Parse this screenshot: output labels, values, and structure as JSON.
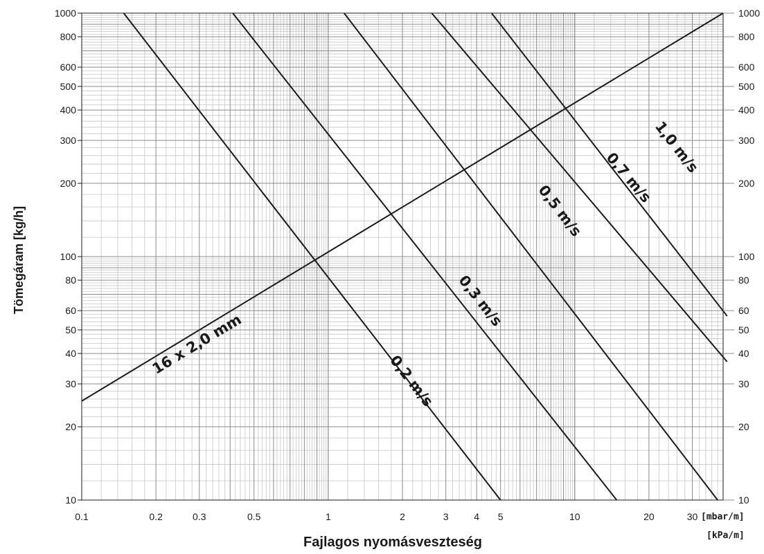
{
  "chart_data": {
    "type": "line",
    "x_scale": "log",
    "y_scale": "log",
    "xlim": [
      0.1,
      40
    ],
    "ylim": [
      10,
      1000
    ],
    "grid": true,
    "title": "",
    "xlabel": "Fajlagos nyomásveszteség",
    "ylabel": "Tömegáram [kg/h]",
    "x_unit_labels": [
      "[mbar/m]",
      "[kPa/m]"
    ],
    "x_ticks": [
      {
        "value": 0.1,
        "label": "0.1"
      },
      {
        "value": 0.2,
        "label": "0.2"
      },
      {
        "value": 0.3,
        "label": "0.3"
      },
      {
        "value": 0.5,
        "label": "0.5"
      },
      {
        "value": 1,
        "label": "1"
      },
      {
        "value": 2,
        "label": "2"
      },
      {
        "value": 3,
        "label": "3"
      },
      {
        "value": 4,
        "label": "4"
      },
      {
        "value": 5,
        "label": "5"
      },
      {
        "value": 10,
        "label": "10"
      },
      {
        "value": 20,
        "label": "20"
      },
      {
        "value": 30,
        "label": "30"
      }
    ],
    "y_ticks": [
      {
        "value": 10,
        "label": "10"
      },
      {
        "value": 20,
        "label": "20"
      },
      {
        "value": 30,
        "label": "30"
      },
      {
        "value": 40,
        "label": "40"
      },
      {
        "value": 50,
        "label": "50"
      },
      {
        "value": 60,
        "label": "60"
      },
      {
        "value": 80,
        "label": "80"
      },
      {
        "value": 100,
        "label": "100"
      },
      {
        "value": 200,
        "label": "200"
      },
      {
        "value": 300,
        "label": "300"
      },
      {
        "value": 400,
        "label": "400"
      },
      {
        "value": 500,
        "label": "500"
      },
      {
        "value": 600,
        "label": "600"
      },
      {
        "value": 800,
        "label": "800"
      },
      {
        "value": 1000,
        "label": "1000"
      }
    ],
    "series": [
      {
        "name": "16 x 2,0 mm",
        "points": [
          [
            0.1,
            25.5
          ],
          [
            40,
            1000
          ]
        ],
        "label_at": [
          0.3,
          42
        ]
      },
      {
        "name": "0,2 m/s",
        "points": [
          [
            0.148,
            1000
          ],
          [
            5.0,
            10
          ]
        ],
        "label_at": [
          2.1,
          30
        ]
      },
      {
        "name": "0,3 m/s",
        "points": [
          [
            0.41,
            1000
          ],
          [
            14.8,
            10
          ]
        ],
        "label_at": [
          4.0,
          64
        ]
      },
      {
        "name": "0,5 m/s",
        "points": [
          [
            1.16,
            1000
          ],
          [
            38,
            10
          ]
        ],
        "label_at": [
          8.4,
          150
        ]
      },
      {
        "name": "0,7 m/s",
        "points": [
          [
            2.63,
            1000
          ],
          [
            41.5,
            37
          ]
        ],
        "label_at": [
          16,
          205
        ]
      },
      {
        "name": "1,0 m/s",
        "points": [
          [
            4.6,
            1000
          ],
          [
            41.5,
            57
          ]
        ],
        "label_at": [
          25,
          274
        ]
      }
    ],
    "colors": {
      "line": "#1a1a1a",
      "grid_major": "#8a8a8a",
      "grid_minor": "#c4c4c4",
      "text": "#1a1a1a"
    }
  }
}
